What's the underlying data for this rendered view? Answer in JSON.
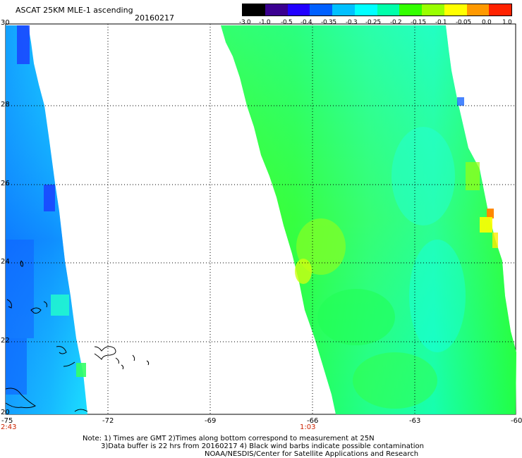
{
  "header": {
    "title": "ASCAT 25KM MLE-1 ascending",
    "date": "20160217"
  },
  "colorbar": {
    "labels": [
      "-3.0",
      "-1.0",
      "-0.5",
      "-0.4",
      "-0.35",
      "-0.3",
      "-0.25",
      "-0.2",
      "-0.15",
      "-0.1",
      "-0.05",
      "0.0",
      "1.0"
    ],
    "colors": [
      "#000000",
      "#3a0090",
      "#2200ff",
      "#0060ff",
      "#00c0ff",
      "#00ffff",
      "#00ffaa",
      "#33ff00",
      "#99ff00",
      "#ffff00",
      "#ff9900",
      "#ff2200"
    ]
  },
  "axes": {
    "lon_ticks": [
      "-75",
      "-72",
      "-69",
      "-66",
      "-63",
      "-60"
    ],
    "lat_ticks": [
      "30",
      "28",
      "26",
      "24",
      "22",
      "20"
    ],
    "times": [
      "2:43",
      "1:03"
    ]
  },
  "notes": {
    "line1": "Note: 1) Times are GMT 2)Times along bottom correspond to measurement at 25N",
    "line2": "3)Data buffer is 22 hrs from 20160217 4) Black wind barbs indicate possible contamination",
    "line3": "NOAA/NESDIS/Center for Satellite Applications and Research"
  }
}
